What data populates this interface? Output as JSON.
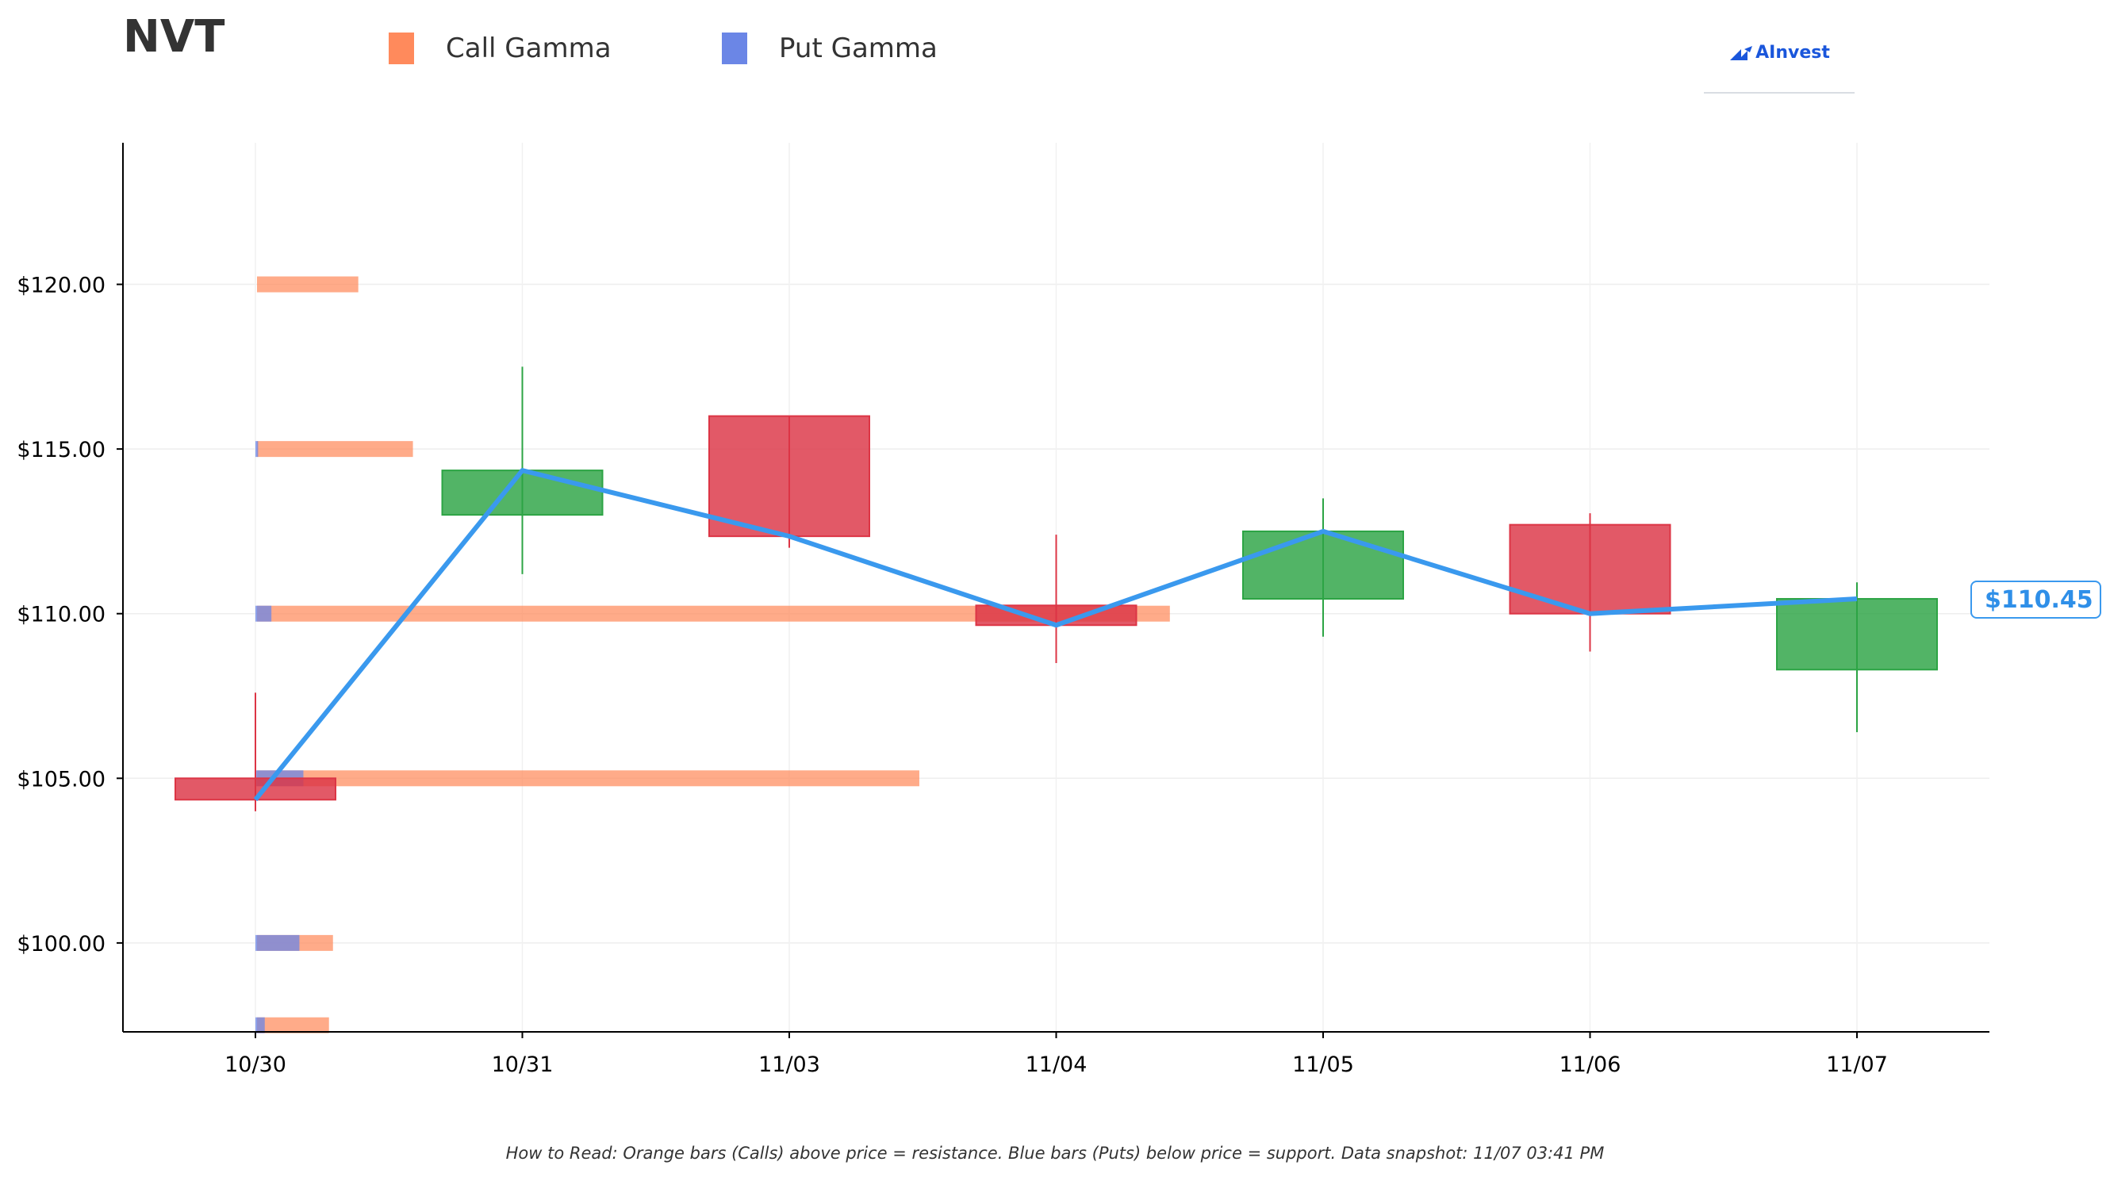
{
  "header": {
    "ticker": "NVT",
    "logo_text": "AInvest"
  },
  "legend": [
    {
      "label": "Call Gamma",
      "color": "#ff8a5c"
    },
    {
      "label": "Put Gamma",
      "color": "#6b86e6"
    }
  ],
  "price_tag": "$110.45",
  "footnote": "How to Read: Orange bars (Calls) above price = resistance. Blue bars (Puts) below price = support. Data snapshot: 11/07 03:41 PM",
  "colors": {
    "up": "#2ca444",
    "down": "#dc3545",
    "price_line": "#3a99ee",
    "call": "#ff8a5c",
    "put": "#6b86e6"
  },
  "chart_data": {
    "type": "candlestick",
    "categories": [
      "10/30",
      "10/31",
      "11/03",
      "11/04",
      "11/05",
      "11/06",
      "11/07"
    ],
    "y_ticks": [
      "$100.00",
      "$105.00",
      "$110.00",
      "$115.00",
      "$120.00"
    ],
    "y_tick_values": [
      100,
      105,
      110,
      115,
      120
    ],
    "ylim": [
      97.3,
      124.3
    ],
    "grid": true,
    "candles": [
      {
        "date": "10/30",
        "open": 105.0,
        "high": 107.6,
        "low": 104.0,
        "close": 104.35
      },
      {
        "date": "10/31",
        "open": 113.0,
        "high": 117.5,
        "low": 111.2,
        "close": 114.35
      },
      {
        "date": "11/03",
        "open": 116.0,
        "high": 116.0,
        "low": 112.0,
        "close": 112.35
      },
      {
        "date": "11/04",
        "open": 110.25,
        "high": 112.4,
        "low": 108.5,
        "close": 109.65
      },
      {
        "date": "11/05",
        "open": 110.45,
        "high": 113.5,
        "low": 109.3,
        "close": 112.5
      },
      {
        "date": "11/06",
        "open": 112.7,
        "high": 113.05,
        "low": 108.85,
        "close": 110.0
      },
      {
        "date": "11/07",
        "open": 108.3,
        "high": 110.95,
        "low": 106.4,
        "close": 110.45
      }
    ],
    "price_line": [
      104.35,
      114.35,
      112.35,
      109.65,
      112.5,
      110.0,
      110.45
    ],
    "gamma_strikes": [
      {
        "strike": 120.0,
        "call": 0.76,
        "put": 0.0
      },
      {
        "strike": 115.0,
        "call": 1.17,
        "put": 0.02
      },
      {
        "strike": 110.0,
        "call": 6.85,
        "put": 0.12
      },
      {
        "strike": 105.0,
        "call": 4.97,
        "put": 0.36
      },
      {
        "strike": 100.0,
        "call": 0.57,
        "put": 0.33
      },
      {
        "strike": 97.5,
        "call": 0.54,
        "put": 0.07
      }
    ],
    "gamma_unit_note": ""
  }
}
